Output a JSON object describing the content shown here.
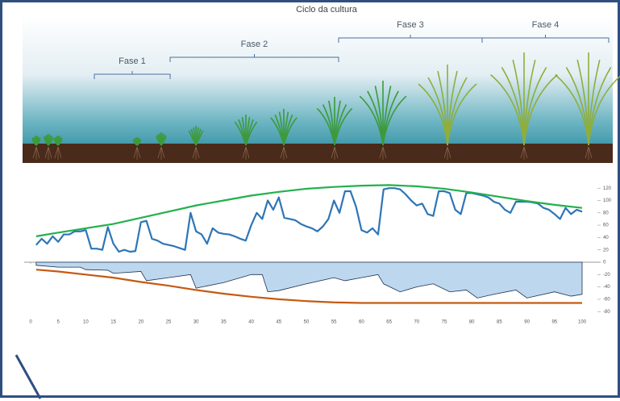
{
  "chart_data": {
    "type": "line",
    "title": "Ciclo da cultura",
    "annotations": [
      "Fase 1",
      "Fase 2",
      "Fase 3",
      "Fase 4"
    ],
    "xlim": [
      0,
      100
    ],
    "xticks": [
      0,
      5,
      10,
      15,
      20,
      25,
      30,
      35,
      40,
      45,
      50,
      55,
      60,
      65,
      70,
      75,
      80,
      85,
      90,
      95,
      100
    ],
    "ylim": [
      -90,
      130
    ],
    "yticks": [
      120,
      100,
      80,
      60,
      40,
      20,
      0,
      -20,
      -40,
      -60,
      -80
    ],
    "series": [
      {
        "style": "line",
        "color": "#2e75b6",
        "x": [
          1,
          2,
          3,
          4,
          5,
          6,
          7,
          8,
          9,
          10,
          11,
          12,
          13,
          14,
          15,
          16,
          17,
          18,
          19,
          20,
          21,
          22,
          23,
          24,
          25,
          26,
          27,
          28,
          29,
          30,
          31,
          32,
          33,
          34,
          35,
          36,
          37,
          38,
          39,
          40,
          41,
          42,
          43,
          44,
          45,
          46,
          47,
          48,
          49,
          50,
          51,
          52,
          53,
          54,
          55,
          56,
          57,
          58,
          59,
          60,
          61,
          62,
          63,
          64,
          65,
          66,
          67,
          68,
          69,
          70,
          71,
          72,
          73,
          74,
          75,
          76,
          77,
          78,
          79,
          80,
          81,
          82,
          83,
          84,
          85,
          86,
          87,
          88,
          89,
          90,
          91,
          92,
          93,
          94,
          95,
          96,
          97,
          98,
          99,
          100
        ],
        "values": [
          28,
          38,
          30,
          42,
          33,
          45,
          45,
          50,
          50,
          52,
          22,
          22,
          20,
          57,
          30,
          17,
          20,
          17,
          18,
          65,
          67,
          38,
          35,
          30,
          28,
          26,
          23,
          20,
          80,
          50,
          45,
          30,
          55,
          48,
          46,
          45,
          42,
          38,
          35,
          60,
          80,
          70,
          100,
          85,
          105,
          72,
          70,
          68,
          62,
          58,
          55,
          50,
          58,
          70,
          100,
          80,
          115,
          115,
          90,
          52,
          48,
          55,
          45,
          118,
          120,
          120,
          118,
          110,
          100,
          92,
          95,
          78,
          75,
          115,
          115,
          112,
          85,
          78,
          112,
          112,
          110,
          108,
          105,
          98,
          95,
          85,
          80,
          98,
          98,
          98,
          97,
          95,
          88,
          85,
          78,
          70,
          88,
          78,
          85,
          82
        ]
      },
      {
        "style": "line",
        "color": "#22b14c",
        "x": [
          1,
          5,
          10,
          15,
          20,
          25,
          30,
          35,
          40,
          45,
          50,
          55,
          60,
          65,
          70,
          75,
          80,
          85,
          90,
          95,
          100
        ],
        "values": [
          42,
          48,
          55,
          62,
          72,
          82,
          92,
          100,
          108,
          114,
          119,
          122,
          124,
          125,
          123,
          119,
          113,
          106,
          99,
          93,
          88
        ]
      },
      {
        "style": "area",
        "color": "#1f3050",
        "fill": "#bdd7ee",
        "x": [
          1,
          5,
          9,
          10,
          14,
          15,
          20,
          21,
          25,
          29,
          30,
          35,
          40,
          42,
          43,
          45,
          50,
          55,
          57,
          60,
          63,
          64,
          67,
          70,
          73,
          76,
          79,
          81,
          84,
          88,
          90,
          95,
          98,
          100
        ],
        "values": [
          -5,
          -8,
          -8,
          -12,
          -13,
          -18,
          -15,
          -30,
          -25,
          -20,
          -42,
          -33,
          -20,
          -20,
          -48,
          -46,
          -35,
          -25,
          -30,
          -25,
          -20,
          -35,
          -48,
          -40,
          -35,
          -48,
          -45,
          -58,
          -52,
          -45,
          -58,
          -48,
          -55,
          -52
        ]
      },
      {
        "style": "line",
        "color": "#c55a11",
        "x": [
          1,
          5,
          10,
          15,
          20,
          25,
          30,
          35,
          40,
          45,
          50,
          55,
          60,
          65,
          70,
          75,
          80,
          85,
          90,
          95,
          100
        ],
        "values": [
          -12,
          -15,
          -20,
          -25,
          -32,
          -38,
          -45,
          -51,
          -56,
          -60,
          -63,
          -65,
          -66,
          -66,
          -66,
          -66,
          -66,
          -66,
          -66,
          -66,
          -66
        ]
      }
    ]
  }
}
